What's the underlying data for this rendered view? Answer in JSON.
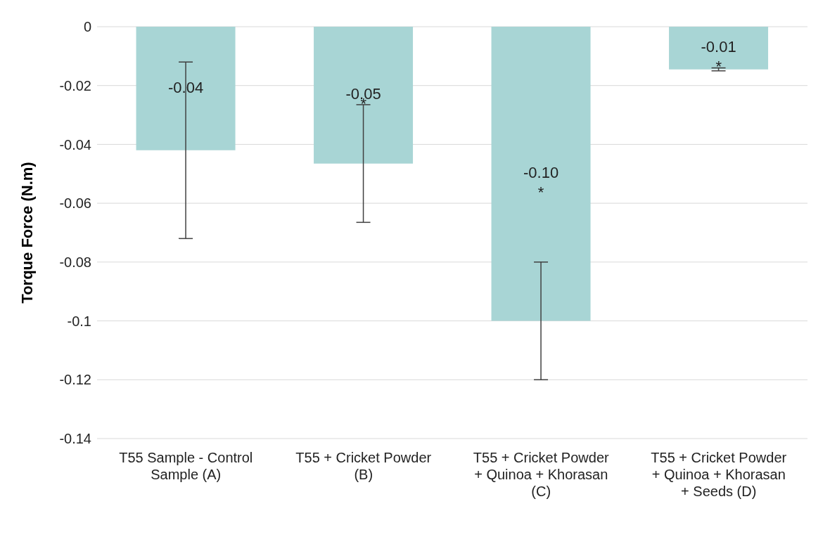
{
  "chart_data": {
    "type": "bar",
    "ylabel": "Torque Force (N.m)",
    "categories": [
      "T55 Sample - Control Sample (A)",
      "T55 + Cricket Powder (B)",
      "T55 + Cricket Powder + Quinoa + Khorasan (C)",
      "T55 + Cricket Powder + Quinoa + Khorasan + Seeds (D)"
    ],
    "values": [
      -0.042,
      -0.0465,
      -0.1,
      -0.0145
    ],
    "value_labels": [
      "-0.04",
      "-0.05",
      "-0.10",
      "-0.01"
    ],
    "errors": [
      0.03,
      0.02,
      0.02,
      0.0005
    ],
    "color": "#a8d5d5",
    "ylim": [
      -0.14,
      0
    ],
    "yticks": [
      0,
      -0.02,
      -0.04,
      -0.06,
      -0.08,
      -0.1,
      -0.12,
      -0.14
    ],
    "grid": "y",
    "annotations": [
      {
        "text": "*",
        "x": "T55 + Cricket Powder (B)",
        "y": -0.026
      },
      "*",
      {
        "text": "*",
        "x": "T55 + Cricket Powder + Quinoa + Khorasan + Seeds (D)",
        "y": -0.0135
      }
    ]
  }
}
